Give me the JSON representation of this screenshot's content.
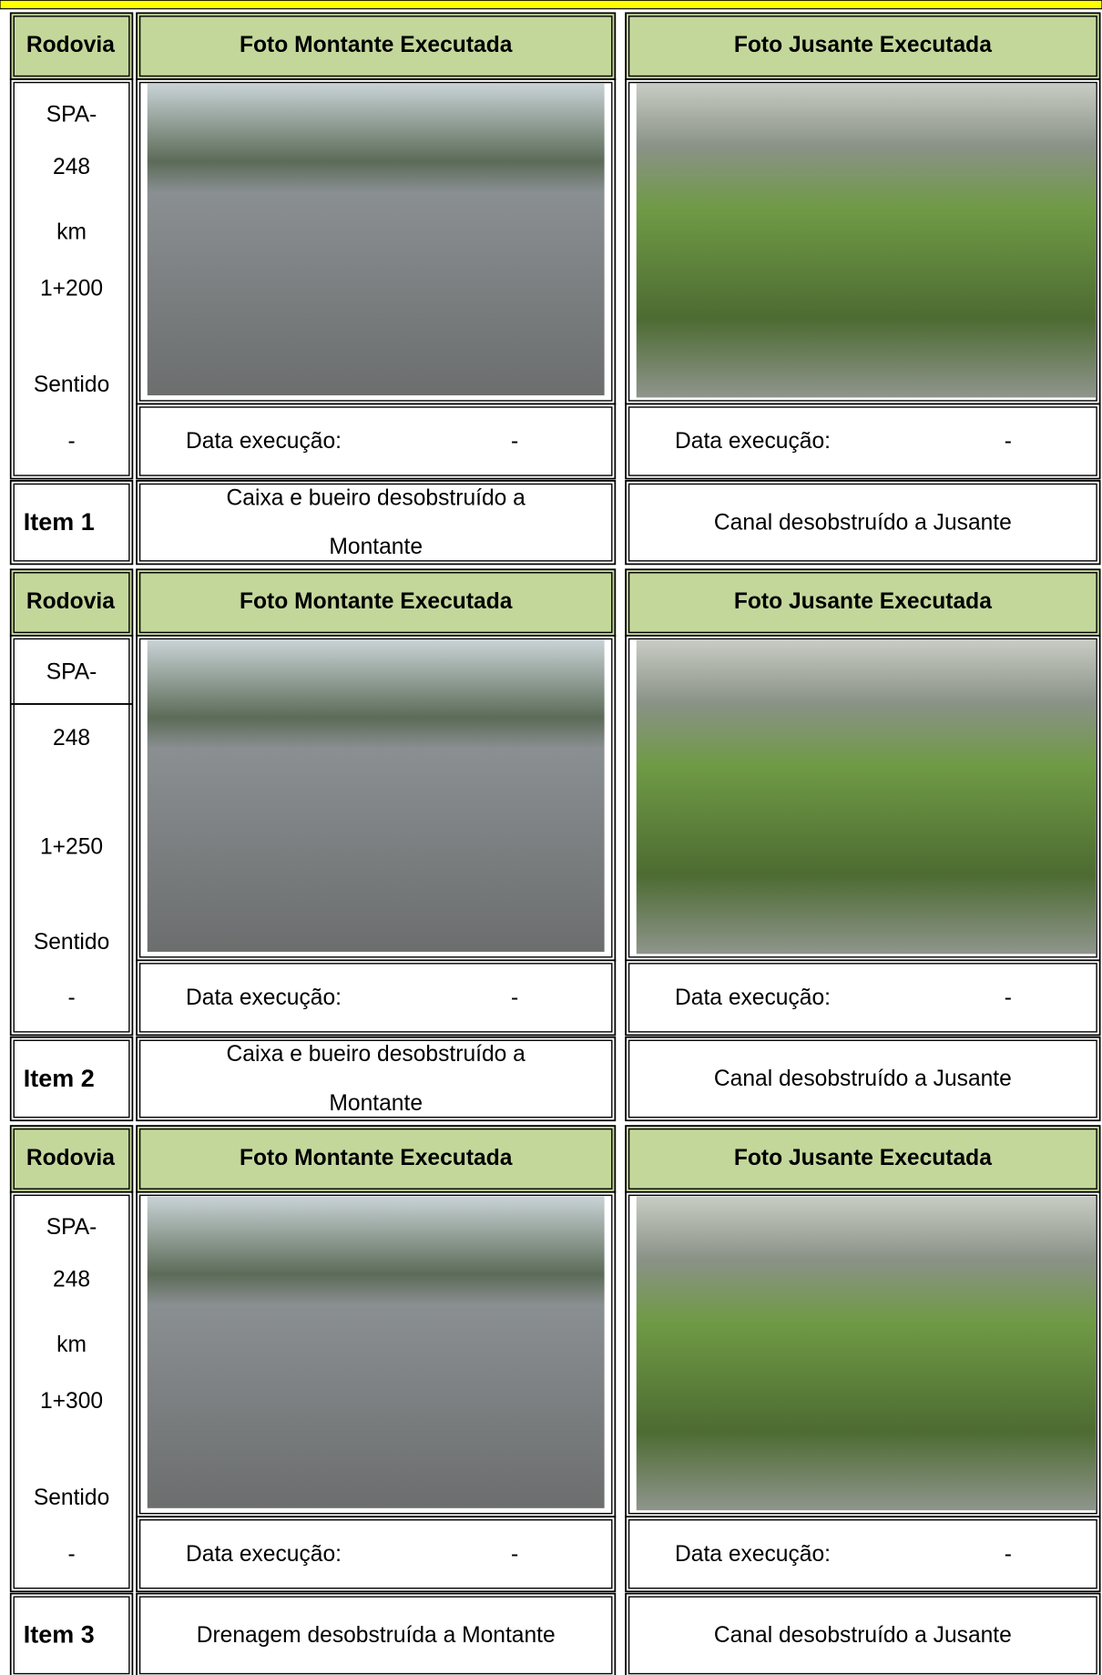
{
  "blocks": [
    {
      "header": [
        "Rodovia",
        "Foto Montante Executada",
        "Foto Jusante Executada"
      ],
      "location": [
        "SPA-",
        "248",
        "km",
        "1+200",
        "Sentido",
        "-"
      ],
      "montante_date": {
        "label": "Data execução:",
        "value": "-"
      },
      "jusante_date": {
        "label": "Data execução:",
        "value": "-"
      },
      "item": "Item 1",
      "montante_desc": [
        "Caixa e bueiro desobstruído a",
        "Montante"
      ],
      "jusante_desc": [
        "Canal desobstruído a Jusante"
      ]
    },
    {
      "header": [
        "Rodovia",
        "Foto Montante Executada",
        "Foto Jusante Executada"
      ],
      "location": [
        "SPA-",
        "248",
        "1+250",
        "Sentido",
        "-"
      ],
      "montante_date": {
        "label": "Data execução:",
        "value": "-"
      },
      "jusante_date": {
        "label": "Data execução:",
        "value": "-"
      },
      "item": "Item 2",
      "montante_desc": [
        "Caixa e bueiro desobstruído a",
        "Montante"
      ],
      "jusante_desc": [
        "Canal desobstruído a Jusante"
      ]
    },
    {
      "header": [
        "Rodovia",
        "Foto Montante Executada",
        "Foto Jusante Executada"
      ],
      "location": [
        "SPA-",
        "248",
        "km",
        "1+300",
        "Sentido",
        "-"
      ],
      "montante_date": {
        "label": "Data execução:",
        "value": "-"
      },
      "jusante_date": {
        "label": "Data execução:",
        "value": "-"
      },
      "item": "Item 3",
      "montante_desc": [
        "Drenagem desobstruída a Montante"
      ],
      "jusante_desc": [
        "Canal desobstruído a Jusante"
      ]
    }
  ]
}
